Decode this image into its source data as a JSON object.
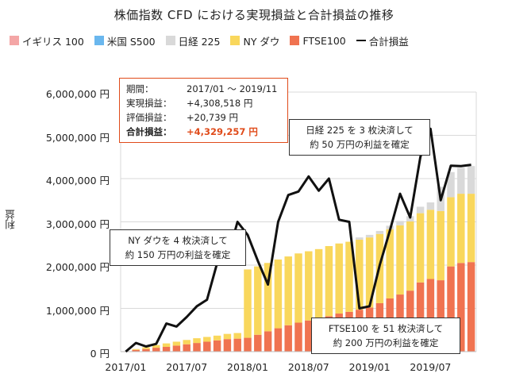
{
  "chart_data": {
    "type": "bar",
    "stacked": true,
    "title": "株価指数 CFD における実現損益と合計損益の推移",
    "ylabel": "利益",
    "ylim": [
      0,
      6000000
    ],
    "yticks": [
      0,
      1000000,
      2000000,
      3000000,
      4000000,
      5000000,
      6000000
    ],
    "ytick_labels": [
      "0 円",
      "1,000,000 円",
      "2,000,000 円",
      "3,000,000 円",
      "4,000,000 円",
      "5,000,000 円",
      "6,000,000 円"
    ],
    "x_tick_labels": [
      "2017/01",
      "2017/07",
      "2018/01",
      "2018/07",
      "2019/01",
      "2019/07"
    ],
    "x_tick_index": [
      0,
      6,
      12,
      18,
      24,
      30
    ],
    "grid": true,
    "legend_position": "top",
    "categories": [
      "2017/01",
      "2017/02",
      "2017/03",
      "2017/04",
      "2017/05",
      "2017/06",
      "2017/07",
      "2017/08",
      "2017/09",
      "2017/10",
      "2017/11",
      "2017/12",
      "2018/01",
      "2018/02",
      "2018/03",
      "2018/04",
      "2018/05",
      "2018/06",
      "2018/07",
      "2018/08",
      "2018/09",
      "2018/10",
      "2018/11",
      "2018/12",
      "2019/01",
      "2019/02",
      "2019/03",
      "2019/04",
      "2019/05",
      "2019/06",
      "2019/07",
      "2019/08",
      "2019/09",
      "2019/10",
      "2019/11"
    ],
    "series": [
      {
        "name": "イギリス 100",
        "kind": "bar",
        "color": "#f4a6a6",
        "values": [
          0,
          0,
          0,
          0,
          0,
          0,
          0,
          0,
          0,
          0,
          0,
          0,
          0,
          0,
          0,
          0,
          0,
          0,
          0,
          0,
          0,
          0,
          0,
          0,
          0,
          0,
          0,
          0,
          0,
          0,
          0,
          0,
          0,
          0,
          0
        ]
      },
      {
        "name": "米国 S500",
        "kind": "bar",
        "color": "#6ab7ee",
        "values": [
          0,
          0,
          0,
          0,
          0,
          0,
          0,
          0,
          0,
          0,
          0,
          0,
          0,
          0,
          0,
          0,
          0,
          0,
          0,
          0,
          0,
          0,
          0,
          0,
          0,
          0,
          0,
          0,
          0,
          0,
          0,
          0,
          0,
          0,
          0
        ]
      },
      {
        "name": "FTSE100",
        "kind": "bar",
        "color": "#f07350",
        "values": [
          10000,
          40000,
          60000,
          90000,
          110000,
          140000,
          170000,
          200000,
          230000,
          260000,
          290000,
          300000,
          320000,
          390000,
          470000,
          540000,
          610000,
          670000,
          720000,
          760000,
          820000,
          880000,
          920000,
          970000,
          1020000,
          1120000,
          1230000,
          1320000,
          1410000,
          1600000,
          1680000,
          1650000,
          1970000,
          2050000,
          2070000
        ]
      },
      {
        "name": "NY ダウ",
        "kind": "bar",
        "color": "#f9d75c",
        "values": [
          0,
          20000,
          40000,
          60000,
          80000,
          90000,
          100000,
          110000,
          110000,
          110000,
          120000,
          130000,
          1580000,
          1580000,
          1580000,
          1590000,
          1590000,
          1600000,
          1600000,
          1610000,
          1620000,
          1620000,
          1620000,
          1620000,
          1620000,
          1600000,
          1600000,
          1600000,
          1600000,
          1600000,
          1600000,
          1600000,
          1600000,
          1600000,
          1580000
        ]
      },
      {
        "name": "日経 225",
        "kind": "bar",
        "color": "#d9d9d9",
        "values": [
          0,
          0,
          0,
          0,
          0,
          0,
          0,
          0,
          0,
          0,
          0,
          0,
          0,
          0,
          0,
          0,
          0,
          0,
          0,
          0,
          0,
          0,
          0,
          50000,
          60000,
          70000,
          80000,
          100000,
          120000,
          150000,
          170000,
          560000,
          580000,
          600000,
          640000
        ]
      },
      {
        "name": "合計損益",
        "kind": "line",
        "color": "#111111",
        "values": [
          0,
          200000,
          120000,
          180000,
          650000,
          580000,
          800000,
          1050000,
          1200000,
          2050000,
          2150000,
          3000000,
          2700000,
          2100000,
          1550000,
          3000000,
          3620000,
          3700000,
          4050000,
          3720000,
          4000000,
          3050000,
          3000000,
          1000000,
          1050000,
          2000000,
          2800000,
          3650000,
          3100000,
          4500000,
          5150000,
          3500000,
          4300000,
          4290000,
          4320000
        ]
      }
    ],
    "summary": {
      "period_label": "期間：",
      "period_value": "2017/01 ～ 2019/11",
      "realized_label": "実現損益：",
      "realized_value": "+4,308,518 円",
      "unrealized_label": "評価損益：",
      "unrealized_value": "+20,739 円",
      "total_label": "合計損益：",
      "total_value": "+4,329,257 円"
    },
    "annotations": [
      {
        "id": "ny",
        "line1": "NY ダウを 4 枚決済して",
        "line2": "約 150 万円の利益を確定"
      },
      {
        "id": "nikkei",
        "line1": "日経 225 を 3 枚決済して",
        "line2": "約 50 万円の利益を確定"
      },
      {
        "id": "ftse",
        "line1": "FTSE100 を 51 枚決済して",
        "line2": "約 200 万円の利益を確定"
      }
    ]
  }
}
